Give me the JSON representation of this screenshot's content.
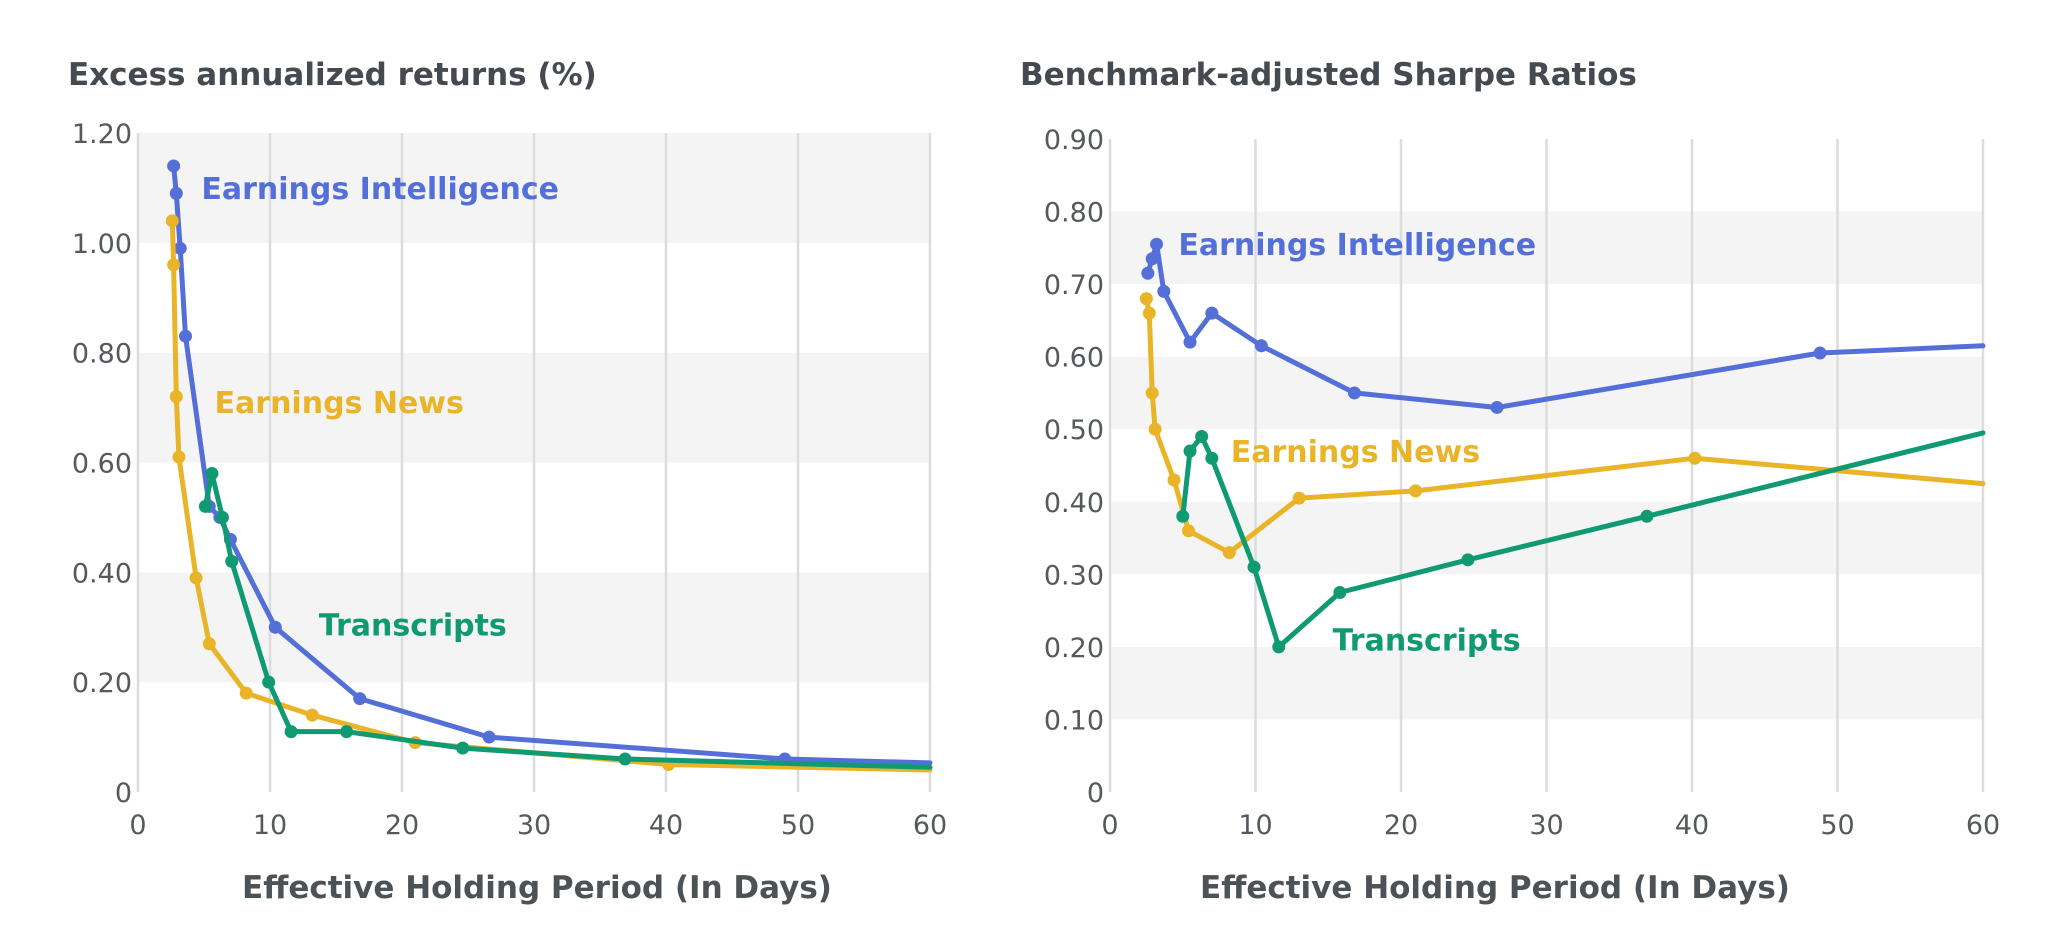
{
  "colors": {
    "earnings_intelligence": "#5470d8",
    "earnings_news": "#e9b428",
    "transcripts": "#109a72",
    "grid": "#dcdcdc",
    "band": "#f4f4f4"
  },
  "chart_data": [
    {
      "type": "line",
      "title": "Excess annualized returns (%)",
      "xlabel": "Effective Holding Period (In Days)",
      "ylabel": "",
      "xlim": [
        0,
        60
      ],
      "ylim": [
        0,
        1.2
      ],
      "xticks": [
        0,
        10,
        20,
        30,
        40,
        50,
        60
      ],
      "xtick_labels": [
        "0",
        "10",
        "20",
        "30",
        "40",
        "50",
        "60"
      ],
      "yticks": [
        0,
        0.2,
        0.4,
        0.6,
        0.8,
        1.0,
        1.2
      ],
      "ytick_labels": [
        "0",
        "0.20",
        "0.40",
        "0.60",
        "0.80",
        "1.00",
        "1.20"
      ],
      "grid": "vertical",
      "legend": "inline labels",
      "series": [
        {
          "name": "Earnings Intelligence",
          "color_key": "earnings_intelligence",
          "x": [
            2.7,
            2.9,
            3.2,
            3.6,
            5.4,
            6.2,
            7.0,
            10.4,
            16.8,
            26.6,
            49.0,
            60.0
          ],
          "y": [
            1.14,
            1.09,
            0.99,
            0.83,
            0.52,
            0.5,
            0.46,
            0.3,
            0.17,
            0.1,
            0.06,
            0.053
          ],
          "label": {
            "text": "Earnings Intelligence",
            "x": 4.8,
            "y": 1.08
          }
        },
        {
          "name": "Earnings News",
          "color_key": "earnings_news",
          "x": [
            2.6,
            2.7,
            2.9,
            3.1,
            4.4,
            5.4,
            8.2,
            13.2,
            21.0,
            40.2,
            60.0
          ],
          "y": [
            1.04,
            0.96,
            0.72,
            0.61,
            0.39,
            0.27,
            0.18,
            0.14,
            0.09,
            0.05,
            0.04
          ],
          "label": {
            "text": "Earnings News",
            "x": 5.8,
            "y": 0.69
          }
        },
        {
          "name": "Transcripts",
          "color_key": "transcripts",
          "x": [
            5.1,
            5.6,
            6.4,
            7.1,
            9.9,
            11.6,
            15.8,
            24.6,
            36.9,
            60.0
          ],
          "y": [
            0.52,
            0.58,
            0.5,
            0.42,
            0.2,
            0.11,
            0.11,
            0.08,
            0.06,
            0.045
          ],
          "label": {
            "text": "Transcripts",
            "x": 13.7,
            "y": 0.285
          }
        }
      ]
    },
    {
      "type": "line",
      "title": "Benchmark-adjusted Sharpe Ratios",
      "xlabel": "Effective Holding Period (In Days)",
      "ylabel": "",
      "xlim": [
        0,
        60
      ],
      "ylim": [
        0,
        0.9
      ],
      "xticks": [
        0,
        10,
        20,
        30,
        40,
        50,
        60
      ],
      "xtick_labels": [
        "0",
        "10",
        "20",
        "30",
        "40",
        "50",
        "60"
      ],
      "yticks": [
        0,
        0.1,
        0.2,
        0.3,
        0.4,
        0.5,
        0.6,
        0.7,
        0.8,
        0.9
      ],
      "ytick_labels": [
        "0",
        "0.10",
        "0.20",
        "0.30",
        "0.40",
        "0.50",
        "0.60",
        "0.70",
        "0.80",
        "0.90"
      ],
      "grid": "vertical",
      "legend": "inline labels",
      "series": [
        {
          "name": "Earnings Intelligence",
          "color_key": "earnings_intelligence",
          "x": [
            2.6,
            2.9,
            3.2,
            3.7,
            5.5,
            7.0,
            10.4,
            16.8,
            26.6,
            48.8,
            60.0
          ],
          "y": [
            0.715,
            0.735,
            0.755,
            0.69,
            0.62,
            0.66,
            0.615,
            0.55,
            0.53,
            0.605,
            0.615
          ],
          "label": {
            "text": "Earnings Intelligence",
            "x": 4.7,
            "y": 0.74
          }
        },
        {
          "name": "Earnings News",
          "color_key": "earnings_news",
          "x": [
            2.5,
            2.7,
            2.9,
            3.1,
            4.4,
            5.4,
            8.2,
            13.0,
            21.0,
            40.2,
            60.0
          ],
          "y": [
            0.68,
            0.66,
            0.55,
            0.5,
            0.43,
            0.36,
            0.33,
            0.405,
            0.415,
            0.46,
            0.425
          ],
          "label": {
            "text": "Earnings News",
            "x": 8.3,
            "y": 0.455
          }
        },
        {
          "name": "Transcripts",
          "color_key": "transcripts",
          "x": [
            5.0,
            5.5,
            6.3,
            7.0,
            9.9,
            11.6,
            15.8,
            24.6,
            36.9,
            60.0
          ],
          "y": [
            0.38,
            0.47,
            0.49,
            0.46,
            0.31,
            0.2,
            0.275,
            0.32,
            0.38,
            0.495
          ],
          "label": {
            "text": "Transcripts",
            "x": 15.3,
            "y": 0.195
          }
        }
      ]
    }
  ]
}
